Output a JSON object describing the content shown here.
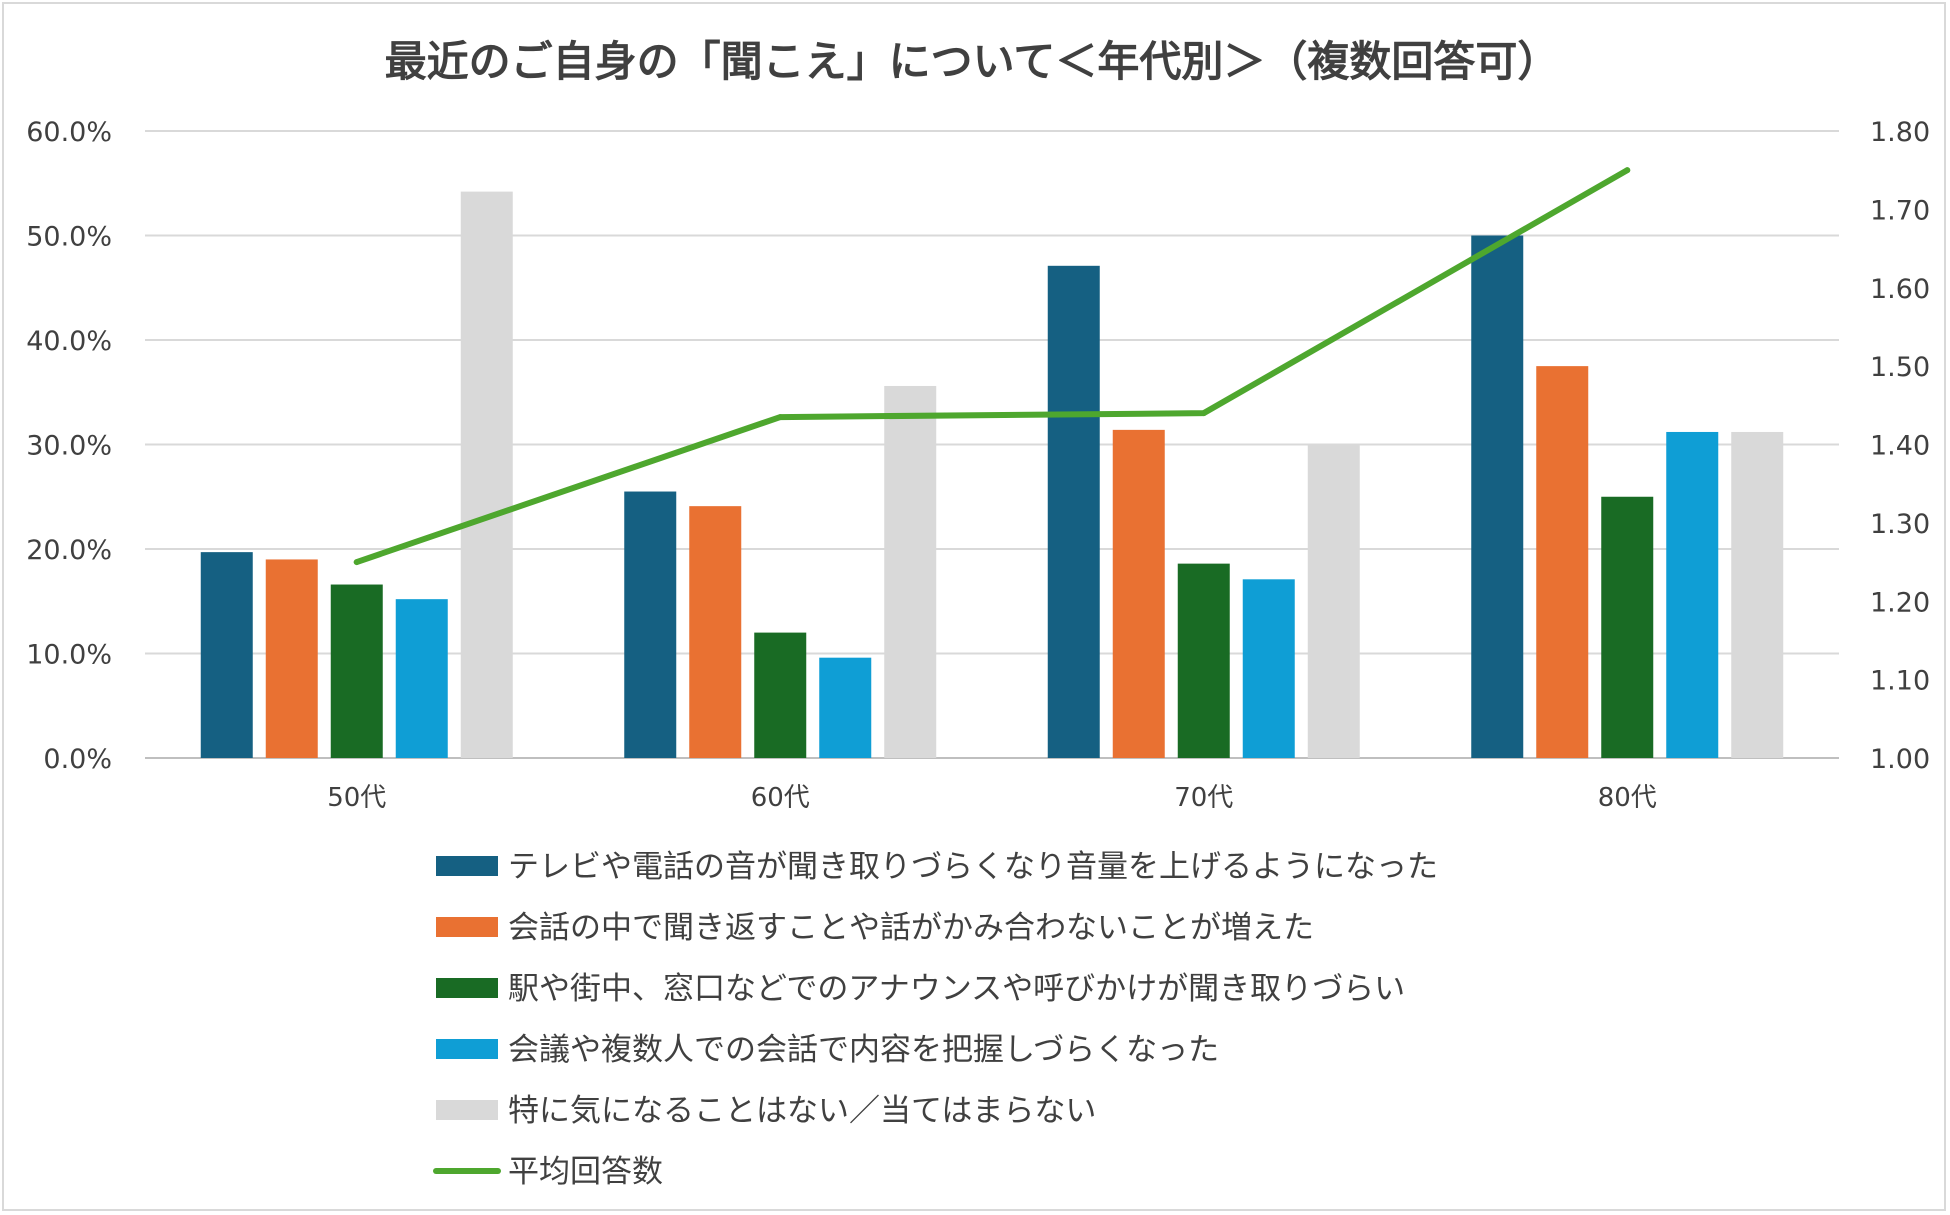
{
  "chart_data": {
    "type": "bar",
    "title": "最近のご自身の「聞こえ」について＜年代別＞（複数回答可）",
    "categories": [
      "50代",
      "60代",
      "70代",
      "80代"
    ],
    "series": [
      {
        "name": "テレビや電話の音が聞き取りづらくなり音量を上げるようになった",
        "color": "#156082",
        "values": [
          19.7,
          25.5,
          47.1,
          50.0
        ]
      },
      {
        "name": "会話の中で聞き返すことや話がかみ合わないことが増えた",
        "color": "#E97132",
        "values": [
          19.0,
          24.1,
          31.4,
          37.5
        ]
      },
      {
        "name": "駅や街中、窓口などでのアナウンスや呼びかけが聞き取りづらい",
        "color": "#196B24",
        "values": [
          16.6,
          12.0,
          18.6,
          25.0
        ]
      },
      {
        "name": "会議や複数人での会話で内容を把握しづらくなった",
        "color": "#0F9ED5",
        "values": [
          15.2,
          9.6,
          17.1,
          31.2
        ]
      },
      {
        "name": "特に気になることはない／当てはまらない",
        "color": "#D9D9D9",
        "values": [
          54.2,
          35.6,
          30.0,
          31.2
        ]
      }
    ],
    "line_series": {
      "name": "平均回答数",
      "color": "#4EA72E",
      "values": [
        1.25,
        1.435,
        1.44,
        1.75
      ]
    },
    "y_left": {
      "min": 0,
      "max": 60,
      "step": 10,
      "tick_labels": [
        "0.0%",
        "10.0%",
        "20.0%",
        "30.0%",
        "40.0%",
        "50.0%",
        "60.0%"
      ]
    },
    "y_right": {
      "min": 1.0,
      "max": 1.8,
      "step": 0.1,
      "tick_labels": [
        "1.00",
        "1.10",
        "1.20",
        "1.30",
        "1.40",
        "1.50",
        "1.60",
        "1.70",
        "1.80"
      ]
    },
    "grid": true,
    "legend_position": "bottom"
  }
}
